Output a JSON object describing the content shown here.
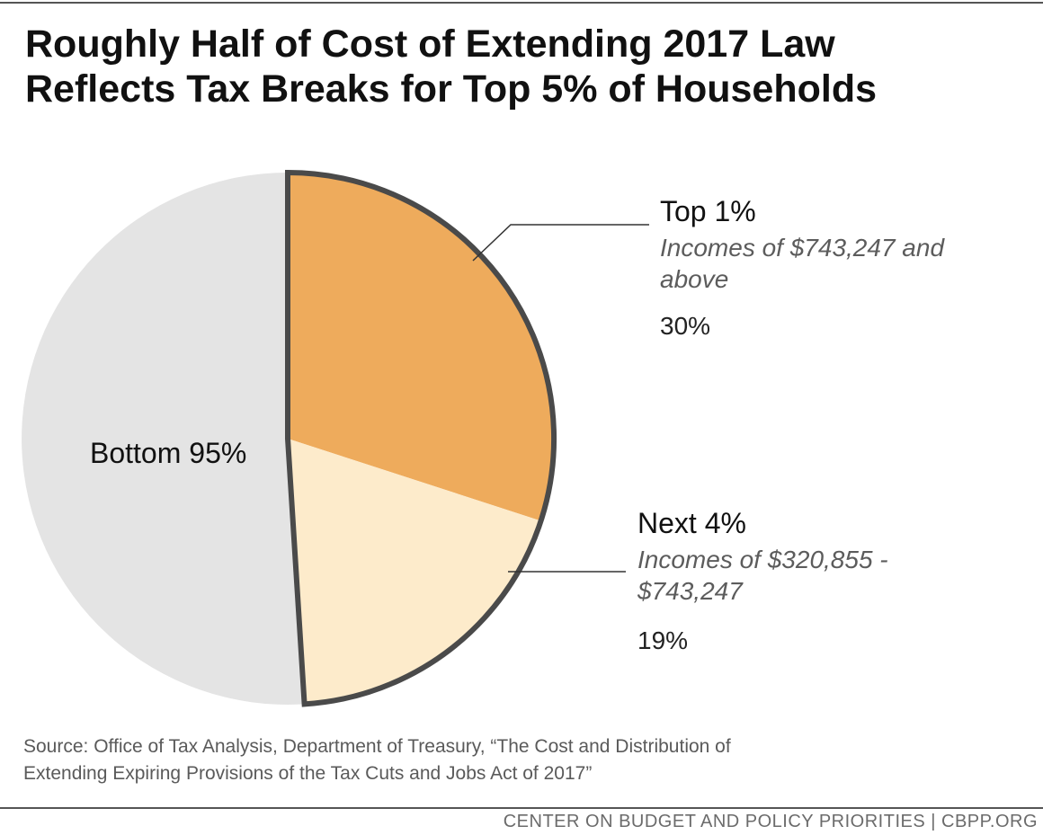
{
  "title": {
    "line1": "Roughly Half of Cost of Extending 2017 Law",
    "line2": "Reflects Tax Breaks for Top 5% of Households"
  },
  "chart_data": {
    "type": "pie",
    "slices": [
      {
        "name": "Top 1%",
        "description_line1": "Incomes of $743,247 and",
        "description_line2": "above",
        "value": 30,
        "value_label": "30%",
        "color": "#eeab5c"
      },
      {
        "name": "Next 4%",
        "description_line1": "Incomes of $320,855 -",
        "description_line2": "$743,247",
        "value": 19,
        "value_label": "19%",
        "color": "#fdebcb"
      },
      {
        "name": "Bottom 95%",
        "value": 51,
        "color": "#e4e4e4"
      }
    ],
    "outline_color": "#4a4a4a"
  },
  "source": {
    "line1": "Source: Office of Tax Analysis, Department of Treasury, “The Cost and Distribution of",
    "line2": "Extending Expiring Provisions of the Tax Cuts and Jobs Act of 2017”"
  },
  "credit": "CENTER ON BUDGET AND POLICY PRIORITIES | CBPP.ORG"
}
